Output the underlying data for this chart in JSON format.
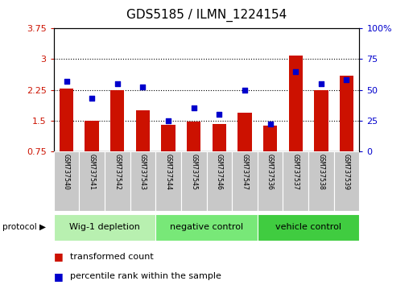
{
  "title": "GDS5185 / ILMN_1224154",
  "samples": [
    "GSM737540",
    "GSM737541",
    "GSM737542",
    "GSM737543",
    "GSM737544",
    "GSM737545",
    "GSM737546",
    "GSM737547",
    "GSM737536",
    "GSM737537",
    "GSM737538",
    "GSM737539"
  ],
  "red_values": [
    2.28,
    1.5,
    2.25,
    1.75,
    1.4,
    1.47,
    1.42,
    1.68,
    1.38,
    3.08,
    2.25,
    2.6
  ],
  "blue_values": [
    57,
    43,
    55,
    52,
    25,
    35,
    30,
    50,
    22,
    65,
    55,
    58
  ],
  "groups": [
    {
      "label": "Wig-1 depletion",
      "start": 0,
      "end": 4,
      "color": "#b8f0b0"
    },
    {
      "label": "negative control",
      "start": 4,
      "end": 8,
      "color": "#78e878"
    },
    {
      "label": "vehicle control",
      "start": 8,
      "end": 12,
      "color": "#40cc40"
    }
  ],
  "ylim_left": [
    0.75,
    3.75
  ],
  "ylim_right": [
    0,
    100
  ],
  "yticks_left": [
    0.75,
    1.5,
    2.25,
    3.0,
    3.75
  ],
  "yticks_right": [
    0,
    25,
    50,
    75,
    100
  ],
  "ytick_labels_left": [
    "0.75",
    "1.5",
    "2.25",
    "3",
    "3.75"
  ],
  "ytick_labels_right": [
    "0",
    "25",
    "50",
    "75",
    "100%"
  ],
  "bar_color": "#cc1100",
  "dot_color": "#0000cc",
  "bar_bottom": 0.75,
  "legend_items": [
    {
      "label": "transformed count",
      "color": "#cc1100"
    },
    {
      "label": "percentile rank within the sample",
      "color": "#0000cc"
    }
  ],
  "gray_box_color": "#c8c8c8",
  "title_fontsize": 11,
  "axis_fontsize": 8,
  "sample_fontsize": 6,
  "group_fontsize": 8,
  "legend_fontsize": 8
}
